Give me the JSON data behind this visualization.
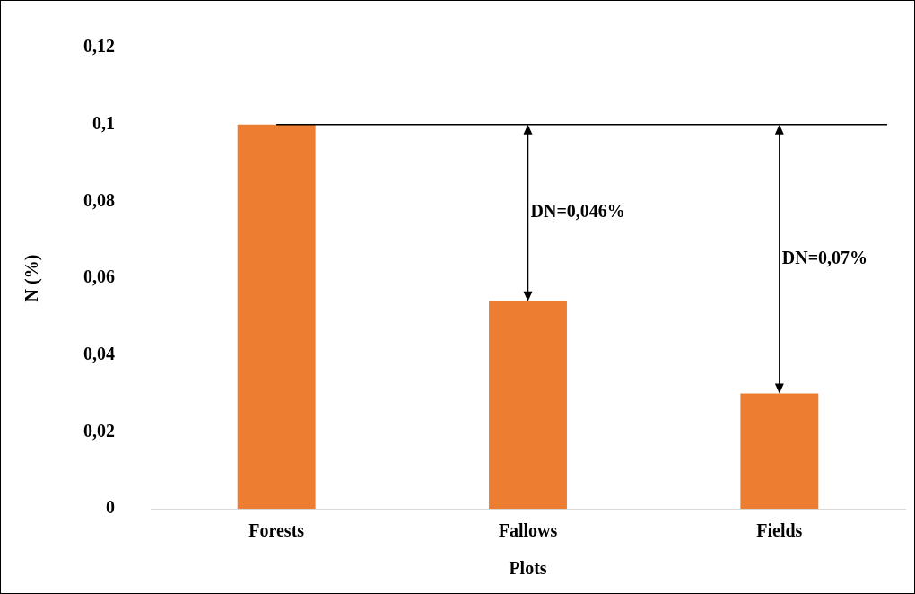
{
  "chart_data": {
    "type": "bar",
    "xlabel": "Plots",
    "ylabel": "N (%)",
    "categories": [
      "Forests",
      "Fallows",
      "Fields"
    ],
    "values": [
      0.1,
      0.054,
      0.03
    ],
    "color": "#ed7d31",
    "ylim": [
      0,
      0.12
    ],
    "yticks": [
      0,
      {
        "value": 0.02,
        "label": "0,02"
      },
      {
        "value": 0.04,
        "label": "0,04"
      },
      {
        "value": 0.06,
        "label": "0,06"
      },
      {
        "value": 0.08,
        "label": "0,08"
      },
      {
        "value": 0.1,
        "label": "0,1"
      },
      {
        "value": 0.12,
        "label": "0,12"
      }
    ],
    "grid": false,
    "legend": false,
    "ref_lines": [
      {
        "axis": "y",
        "value": 0.1,
        "color": "#000000"
      }
    ],
    "annotations": [
      "DN=0,046%",
      "DN=0,07%"
    ]
  }
}
